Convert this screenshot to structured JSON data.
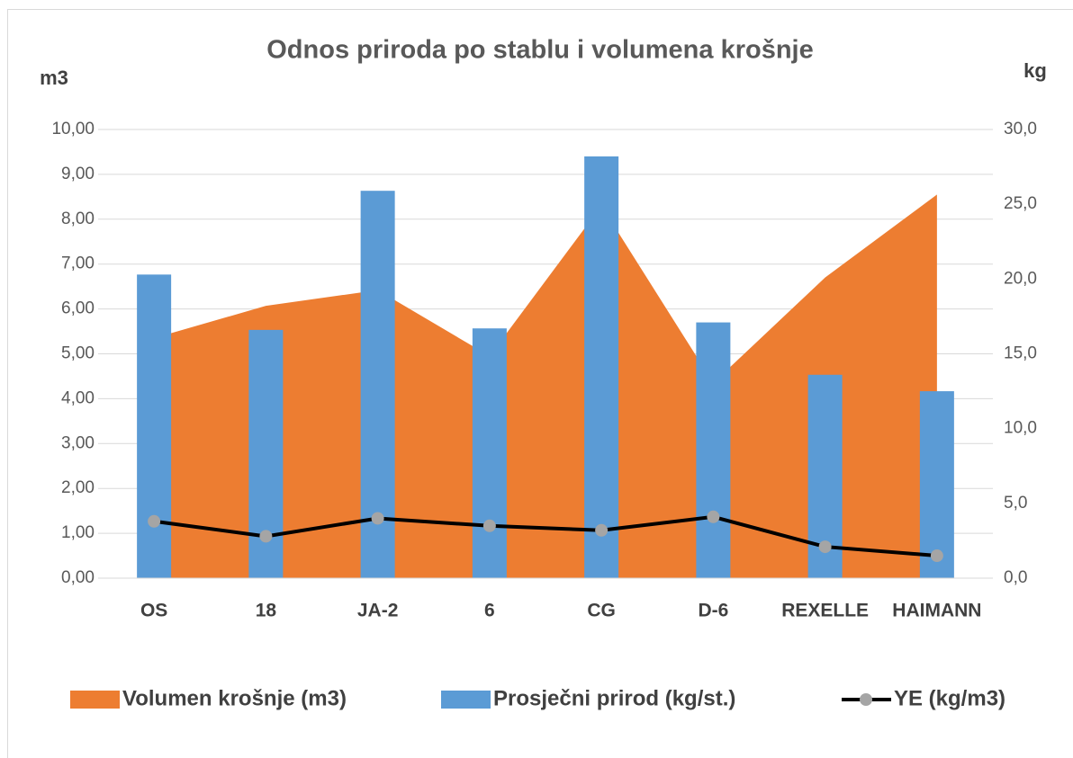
{
  "chart_data": {
    "type": "combo",
    "title": "Odnos priroda po stablu i volumena krošnje",
    "y_axis_label": "m3",
    "y2_axis_label": "kg",
    "categories": [
      "OS",
      "18",
      "JA-2",
      "6",
      "CG",
      "D-6",
      "REXELLE",
      "HAIMANN"
    ],
    "series": [
      {
        "name": "Volumen krošnje (m3)",
        "type": "area",
        "color": "#ed7d31",
        "axis": "y",
        "values": [
          5.35,
          6.07,
          6.42,
          4.95,
          8.3,
          4.35,
          6.7,
          8.55
        ]
      },
      {
        "name": "Prosječni prirod (kg/st.)",
        "type": "bar",
        "color": "#5b9bd5",
        "axis": "y2",
        "values": [
          20.3,
          16.6,
          25.9,
          16.7,
          28.2,
          17.1,
          13.6,
          12.5
        ]
      },
      {
        "name": "YE (kg/m3)",
        "type": "line",
        "color": "#000000",
        "marker_color": "#a5a5a5",
        "axis": "y2",
        "values": [
          3.8,
          2.8,
          4.0,
          3.5,
          3.2,
          4.1,
          2.1,
          1.5
        ]
      }
    ],
    "ylim": [
      0,
      10
    ],
    "yticks": [
      {
        "value": 0,
        "label": "0,00"
      },
      {
        "value": 1,
        "label": "1,00"
      },
      {
        "value": 2,
        "label": "2,00"
      },
      {
        "value": 3,
        "label": "3,00"
      },
      {
        "value": 4,
        "label": "4,00"
      },
      {
        "value": 5,
        "label": "5,00"
      },
      {
        "value": 6,
        "label": "6,00"
      },
      {
        "value": 7,
        "label": "7,00"
      },
      {
        "value": 8,
        "label": "8,00"
      },
      {
        "value": 9,
        "label": "9,00"
      },
      {
        "value": 10,
        "label": "10,00"
      }
    ],
    "y2lim": [
      0,
      30
    ],
    "y2ticks": [
      {
        "value": 0,
        "label": "0,0"
      },
      {
        "value": 5,
        "label": "5,0"
      },
      {
        "value": 10,
        "label": "10,0"
      },
      {
        "value": 15,
        "label": "15,0"
      },
      {
        "value": 20,
        "label": "20,0"
      },
      {
        "value": 25,
        "label": "25,0"
      },
      {
        "value": 30,
        "label": "30,0"
      }
    ],
    "grid": true,
    "legend": "bottom"
  }
}
